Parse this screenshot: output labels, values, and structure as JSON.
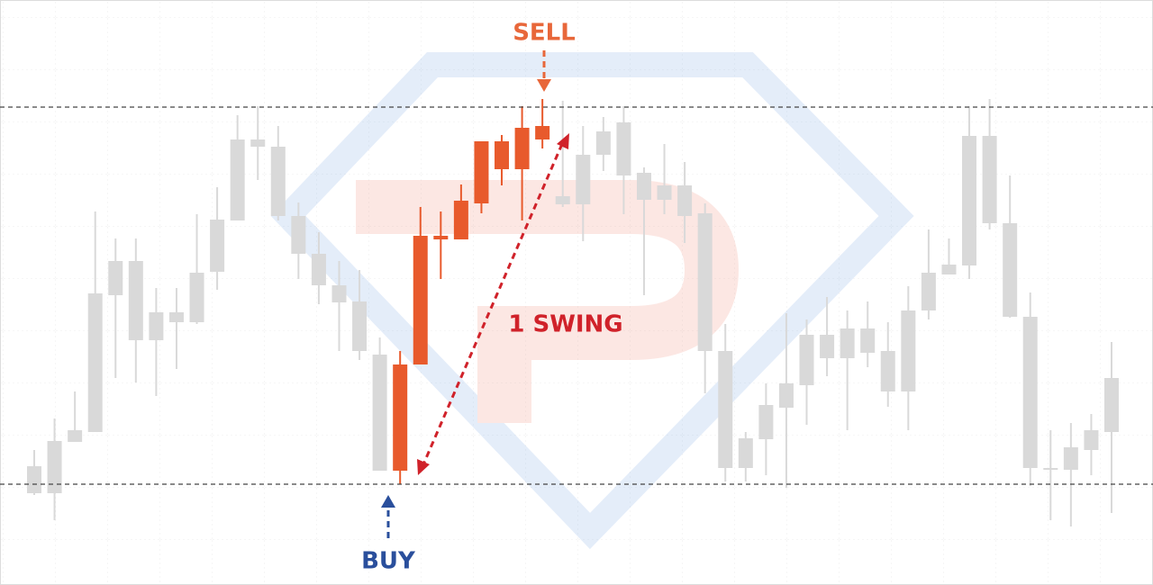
{
  "chart_data": {
    "type": "candlestick",
    "open": [
      102,
      102,
      159,
      170,
      322,
      272,
      272,
      292,
      292,
      348,
      405,
      487,
      410,
      368,
      333,
      314,
      260,
      127,
      127,
      245,
      384,
      384,
      424,
      462,
      462,
      495,
      423,
      423,
      478,
      455,
      428,
      428,
      410,
      260,
      130,
      130,
      162,
      197,
      222,
      252,
      252,
      258,
      215,
      215,
      305,
      345,
      355,
      402,
      298,
      130,
      128,
      128,
      150,
      170
    ],
    "high": [
      150,
      185,
      215,
      415,
      385,
      385,
      330,
      330,
      412,
      442,
      522,
      532,
      510,
      425,
      392,
      360,
      350,
      275,
      260,
      420,
      415,
      445,
      493,
      500,
      532,
      540,
      538,
      510,
      520,
      532,
      464,
      490,
      470,
      424,
      290,
      170,
      224,
      302,
      295,
      320,
      305,
      315,
      292,
      332,
      395,
      385,
      532,
      540,
      455,
      325,
      172,
      180,
      190,
      270
    ],
    "low": [
      100,
      72,
      159,
      170,
      230,
      225,
      210,
      240,
      290,
      328,
      405,
      450,
      405,
      340,
      312,
      260,
      250,
      127,
      112,
      245,
      340,
      384,
      413,
      444,
      405,
      485,
      420,
      382,
      460,
      412,
      322,
      412,
      380,
      213,
      115,
      115,
      122,
      108,
      178,
      232,
      172,
      242,
      198,
      172,
      295,
      345,
      340,
      395,
      297,
      110,
      72,
      65,
      122,
      80
    ],
    "close": [
      132,
      160,
      172,
      324,
      360,
      360,
      303,
      303,
      347,
      406,
      495,
      495,
      487,
      410,
      368,
      333,
      315,
      256,
      245,
      388,
      388,
      427,
      493,
      493,
      508,
      510,
      432,
      478,
      504,
      514,
      458,
      444,
      444,
      413,
      260,
      163,
      200,
      224,
      278,
      278,
      285,
      285,
      260,
      305,
      347,
      356,
      499,
      499,
      402,
      298,
      130,
      153,
      172,
      230
    ],
    "colors": [
      "#d9d9d9",
      "#d9d9d9",
      "#d9d9d9",
      "#d9d9d9",
      "#d9d9d9",
      "#d9d9d9",
      "#d9d9d9",
      "#d9d9d9",
      "#d9d9d9",
      "#d9d9d9",
      "#d9d9d9",
      "#d9d9d9",
      "#d9d9d9",
      "#d9d9d9",
      "#d9d9d9",
      "#d9d9d9",
      "#d9d9d9",
      "#d9d9d9",
      "#e85a2c",
      "#e85a2c",
      "#e85a2c",
      "#e85a2c",
      "#e85a2c",
      "#e85a2c",
      "#e85a2c",
      "#e85a2c",
      "#d9d9d9",
      "#d9d9d9",
      "#d9d9d9",
      "#d9d9d9",
      "#d9d9d9",
      "#d9d9d9",
      "#d9d9d9",
      "#d9d9d9",
      "#d9d9d9",
      "#d9d9d9",
      "#d9d9d9",
      "#d9d9d9",
      "#d9d9d9",
      "#d9d9d9",
      "#d9d9d9",
      "#d9d9d9",
      "#d9d9d9",
      "#d9d9d9",
      "#d9d9d9",
      "#d9d9d9",
      "#d9d9d9",
      "#d9d9d9",
      "#d9d9d9",
      "#d9d9d9",
      "#d9d9d9",
      "#d9d9d9",
      "#d9d9d9",
      "#d9d9d9"
    ],
    "levels": [
      531,
      112
    ],
    "ylim": [
      0,
      650
    ],
    "annotations": {
      "sell": "SELL",
      "buy": "BUY",
      "swing": "1 SWING"
    }
  }
}
